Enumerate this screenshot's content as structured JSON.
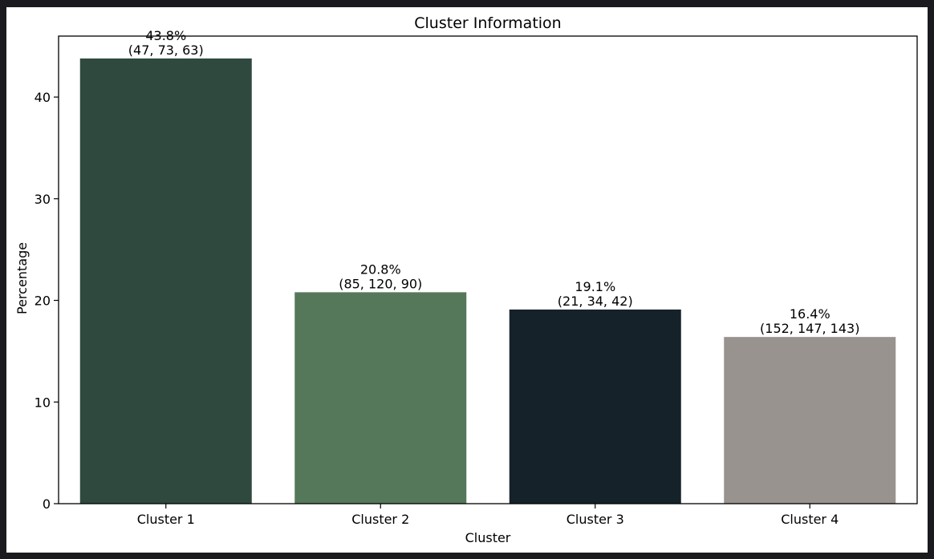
{
  "chart_data": {
    "type": "bar",
    "title": "Cluster Information",
    "xlabel": "Cluster",
    "ylabel": "Percentage",
    "categories": [
      "Cluster 1",
      "Cluster 2",
      "Cluster 3",
      "Cluster 4"
    ],
    "values": [
      43.8,
      20.8,
      19.1,
      16.4
    ],
    "value_labels": [
      "43.8%",
      "20.8%",
      "19.1%",
      "16.4%"
    ],
    "rgb_labels": [
      "(47, 73, 63)",
      "(85, 120, 90)",
      "(21, 34, 42)",
      "(152, 147, 143)"
    ],
    "colors": [
      "#2f493f",
      "#55785a",
      "#15222a",
      "#98938f"
    ],
    "ylim": [
      0,
      46
    ],
    "yticks": [
      0,
      10,
      20,
      30,
      40
    ],
    "grid": false,
    "legend": "none"
  }
}
